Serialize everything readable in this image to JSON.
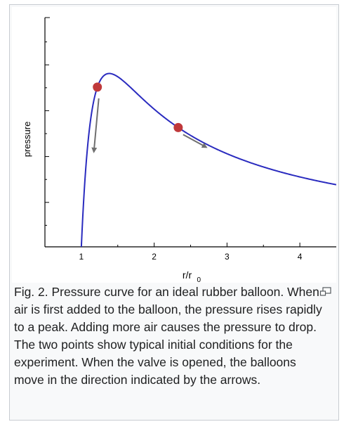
{
  "figure": {
    "caption": "Fig. 2. Pressure curve for an ideal rubber balloon. When air is first added to the balloon, the pressure rises rapidly to a peak. Adding more air causes the pressure to drop. The two points show typical initial conditions for the experiment. When the valve is opened, the balloons move in the direction indicated by the arrows.",
    "enlarge_icon": "enlarge-icon"
  },
  "chart_data": {
    "type": "line",
    "title": "",
    "xlabel_main": "r/r",
    "xlabel_sub": "0",
    "ylabel": "pressure",
    "xlim": [
      0.5,
      4.5
    ],
    "ylim": [
      0,
      1.0
    ],
    "x_ticks": [
      1,
      2,
      3,
      4
    ],
    "x_tick_labels": [
      "1",
      "2",
      "3",
      "4"
    ],
    "y_ticks_count": 5,
    "grid": false,
    "curve_color": "#2a2bbf",
    "point_color": "#c0393b",
    "arrow_color": "#707070",
    "series": [
      {
        "formula": "(1/x - 1/x^7)",
        "x": [
          1.0,
          1.05,
          1.1,
          1.15,
          1.2,
          1.25,
          1.3,
          1.35,
          1.4,
          1.5,
          1.6,
          1.8,
          2.0,
          2.33,
          2.6,
          3.0,
          3.5,
          4.0,
          4.5
        ],
        "y": [
          0.0,
          0.24,
          0.4,
          0.53,
          0.63,
          0.7,
          0.75,
          0.78,
          0.79,
          0.78,
          0.76,
          0.71,
          0.65,
          0.59,
          0.53,
          0.46,
          0.38,
          0.32,
          0.28
        ]
      }
    ],
    "points": [
      {
        "x": 1.22,
        "y": 0.73
      },
      {
        "x": 2.33,
        "y": 0.56
      }
    ],
    "arrows": [
      {
        "from": [
          1.22,
          0.69
        ],
        "to": [
          1.18,
          0.43
        ],
        "direction": "down"
      },
      {
        "from": [
          2.38,
          0.53
        ],
        "to": [
          2.68,
          0.46
        ],
        "direction": "down-right"
      }
    ]
  }
}
